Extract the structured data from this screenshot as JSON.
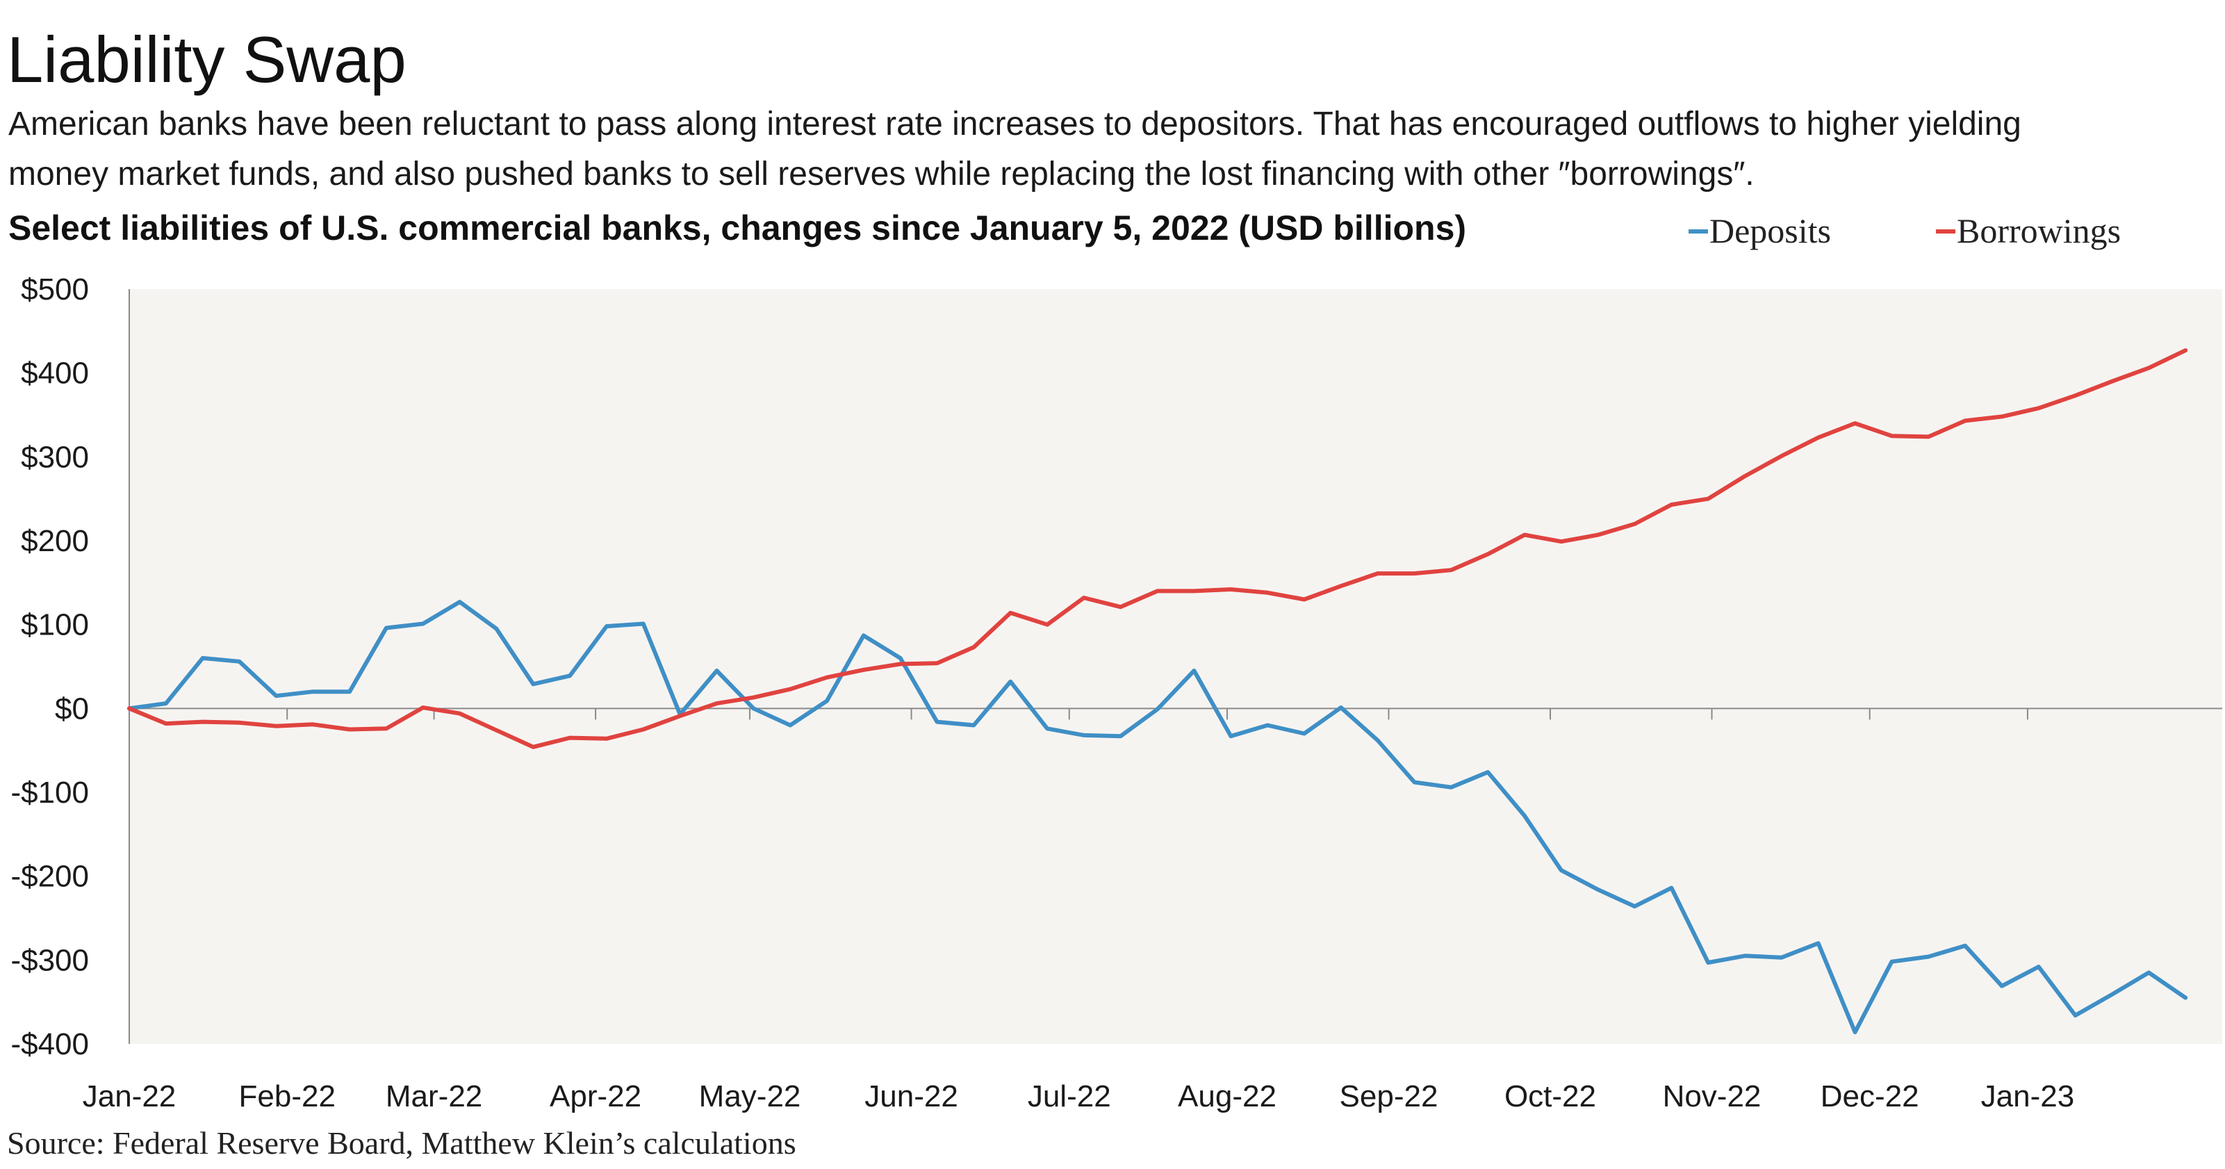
{
  "chart_data": {
    "type": "line",
    "title": "Liability Swap",
    "subtitle_lines": [
      "American banks have been reluctant to pass along interest rate increases to depositors. That has encouraged outflows to higher yielding",
      "money market funds, and also pushed banks to sell reserves while replacing the lost financing with other ″borrowings″."
    ],
    "chart_heading": "Select liabilities of U.S. commercial banks, changes since January 5, 2022 (USD billions)",
    "source": "Source: Federal Reserve Board, Matthew Klein’s calculations",
    "ylabel": "USD billions",
    "xlabel": "",
    "ylim": [
      -400,
      500
    ],
    "yticks": [
      500,
      400,
      300,
      200,
      100,
      0,
      -100,
      -200,
      -300,
      -400
    ],
    "ytick_labels": [
      "$500",
      "$400",
      "$300",
      "$200",
      "$100",
      "$0",
      "-$100",
      "-$200",
      "-$300",
      "-$400"
    ],
    "x_range": [
      0,
      57
    ],
    "x_tick_positions": [
      0,
      4.3,
      8.3,
      12.7,
      16.9,
      21.3,
      25.6,
      29.9,
      34.3,
      38.7,
      43.1,
      47.4,
      51.7
    ],
    "x_tick_labels": [
      "Jan-22",
      "Feb-22",
      "Mar-22",
      "Apr-22",
      "May-22",
      "Jun-22",
      "Jul-22",
      "Aug-22",
      "Sep-22",
      "Oct-22",
      "Nov-22",
      "Dec-22",
      "Jan-23"
    ],
    "grid": false,
    "legend_position": "top-right",
    "series": [
      {
        "name": "Deposits",
        "color": "#3f8fc6",
        "values": [
          0,
          6,
          60,
          56,
          15,
          20,
          20,
          96,
          101,
          127,
          95,
          29,
          39,
          98,
          101,
          -7,
          45,
          0,
          -20,
          9,
          87,
          60,
          -16,
          -20,
          32,
          -24,
          -32,
          -33,
          -1,
          45,
          -33,
          -20,
          -30,
          1,
          -38,
          -88,
          -94,
          -76,
          -128,
          -193,
          -216,
          -236,
          -214,
          -303,
          -295,
          -297,
          -280,
          -386,
          -302,
          -296,
          -283,
          -331,
          -308,
          -366,
          -341,
          -315,
          -345
        ]
      },
      {
        "name": "Borrowings",
        "color": "#e0433f",
        "values": [
          0,
          -18,
          -16,
          -17,
          -21,
          -19,
          -25,
          -24,
          1,
          -6,
          -26,
          -46,
          -35,
          -36,
          -25,
          -9,
          6,
          13,
          23,
          37,
          46,
          53,
          54,
          73,
          114,
          100,
          132,
          121,
          140,
          140,
          142,
          138,
          130,
          146,
          161,
          161,
          165,
          184,
          207,
          199,
          207,
          220,
          243,
          250,
          277,
          301,
          323,
          340,
          325,
          324,
          343,
          348,
          358,
          373,
          390,
          406,
          427
        ]
      }
    ]
  }
}
